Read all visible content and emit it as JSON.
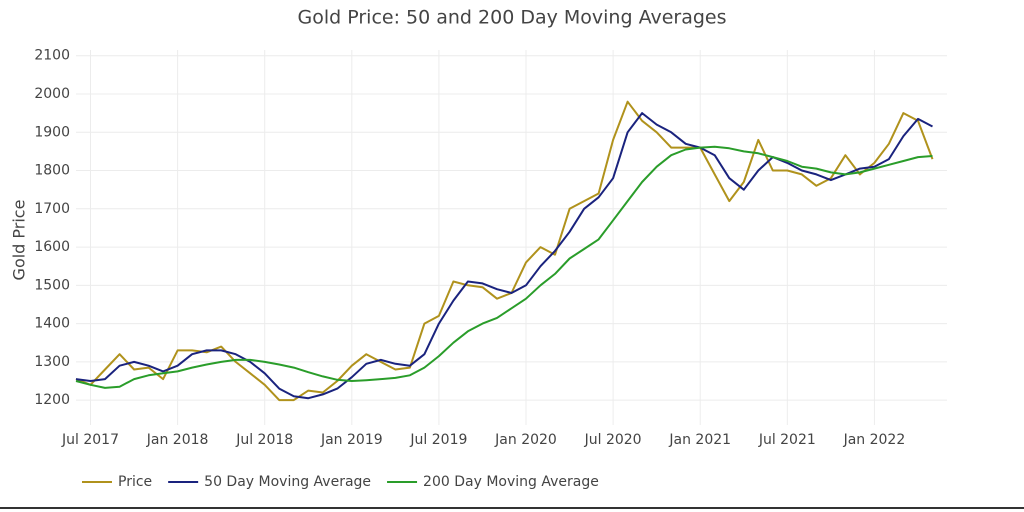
{
  "chart_data": {
    "type": "line",
    "title": "Gold Price: 50 and 200 Day Moving Averages",
    "y_label": "Gold Price",
    "x": [
      "2017-06",
      "2017-07",
      "2017-08",
      "2017-09",
      "2017-10",
      "2017-11",
      "2017-12",
      "2018-01",
      "2018-02",
      "2018-03",
      "2018-04",
      "2018-05",
      "2018-06",
      "2018-07",
      "2018-08",
      "2018-09",
      "2018-10",
      "2018-11",
      "2018-12",
      "2019-01",
      "2019-02",
      "2019-03",
      "2019-04",
      "2019-05",
      "2019-06",
      "2019-07",
      "2019-08",
      "2019-09",
      "2019-10",
      "2019-11",
      "2019-12",
      "2020-01",
      "2020-02",
      "2020-03",
      "2020-04",
      "2020-05",
      "2020-06",
      "2020-07",
      "2020-08",
      "2020-09",
      "2020-10",
      "2020-11",
      "2020-12",
      "2021-01",
      "2021-02",
      "2021-03",
      "2021-04",
      "2021-05",
      "2021-06",
      "2021-07",
      "2021-08",
      "2021-09",
      "2021-10",
      "2021-11",
      "2021-12",
      "2022-01",
      "2022-02",
      "2022-03",
      "2022-04",
      "2022-05"
    ],
    "series": [
      {
        "name": "Price",
        "color": "#b0921c",
        "values": [
          1255,
          1240,
          1280,
          1320,
          1280,
          1285,
          1255,
          1330,
          1330,
          1325,
          1340,
          1300,
          1270,
          1240,
          1200,
          1200,
          1225,
          1220,
          1250,
          1290,
          1320,
          1300,
          1280,
          1285,
          1400,
          1420,
          1510,
          1500,
          1495,
          1465,
          1480,
          1560,
          1600,
          1580,
          1700,
          1720,
          1740,
          1880,
          1980,
          1930,
          1900,
          1860,
          1860,
          1860,
          1790,
          1720,
          1770,
          1880,
          1800,
          1800,
          1790,
          1760,
          1780,
          1840,
          1790,
          1820,
          1870,
          1950,
          1930,
          1830
        ]
      },
      {
        "name": "50 Day Moving Average",
        "color": "#1a237e",
        "values": [
          1255,
          1250,
          1255,
          1290,
          1300,
          1290,
          1275,
          1290,
          1320,
          1330,
          1330,
          1320,
          1300,
          1270,
          1230,
          1210,
          1205,
          1215,
          1230,
          1260,
          1295,
          1305,
          1295,
          1290,
          1320,
          1400,
          1460,
          1510,
          1505,
          1490,
          1480,
          1500,
          1550,
          1590,
          1640,
          1700,
          1730,
          1780,
          1900,
          1950,
          1920,
          1900,
          1870,
          1860,
          1840,
          1780,
          1750,
          1800,
          1835,
          1820,
          1800,
          1790,
          1775,
          1790,
          1805,
          1810,
          1830,
          1890,
          1935,
          1915
        ]
      },
      {
        "name": "200 Day Moving Average",
        "color": "#2a9d2a",
        "values": [
          1250,
          1240,
          1232,
          1235,
          1255,
          1265,
          1270,
          1275,
          1285,
          1293,
          1300,
          1305,
          1305,
          1300,
          1293,
          1285,
          1273,
          1262,
          1253,
          1250,
          1252,
          1255,
          1258,
          1265,
          1285,
          1315,
          1350,
          1380,
          1400,
          1415,
          1440,
          1465,
          1500,
          1530,
          1570,
          1595,
          1620,
          1670,
          1720,
          1770,
          1810,
          1840,
          1855,
          1860,
          1862,
          1858,
          1850,
          1845,
          1835,
          1825,
          1810,
          1805,
          1795,
          1790,
          1795,
          1805,
          1815,
          1825,
          1835,
          1838
        ]
      }
    ],
    "xlim": [
      "2017-06",
      "2022-06"
    ],
    "xticks": [
      {
        "value": "2017-07",
        "label": "Jul 2017"
      },
      {
        "value": "2018-01",
        "label": "Jan 2018"
      },
      {
        "value": "2018-07",
        "label": "Jul 2018"
      },
      {
        "value": "2019-01",
        "label": "Jan 2019"
      },
      {
        "value": "2019-07",
        "label": "Jul 2019"
      },
      {
        "value": "2020-01",
        "label": "Jan 2020"
      },
      {
        "value": "2020-07",
        "label": "Jul 2020"
      },
      {
        "value": "2021-01",
        "label": "Jan 2021"
      },
      {
        "value": "2021-07",
        "label": "Jul 2021"
      },
      {
        "value": "2022-01",
        "label": "Jan 2022"
      }
    ],
    "ylim": [
      1135,
      2115
    ],
    "yticks": [
      1200,
      1300,
      1400,
      1500,
      1600,
      1700,
      1800,
      1900,
      2000,
      2100
    ],
    "grid": true,
    "legend": "bottom-left"
  }
}
